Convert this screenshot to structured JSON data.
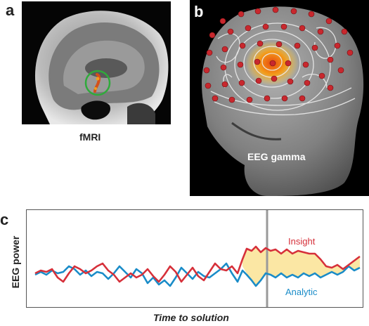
{
  "panel_a": {
    "letter": "a",
    "caption": "fMRI"
  },
  "panel_b": {
    "letter": "b",
    "caption": "EEG gamma"
  },
  "panel_c": {
    "letter": "c",
    "ylabel": "EEG power",
    "xlabel": "Time to solution",
    "series": [
      {
        "name": "Insight",
        "color": "#d6303a"
      },
      {
        "name": "Analytic",
        "color": "#1a8cc8"
      }
    ],
    "fill_color": "#fbe7a4",
    "marker_color": "#9a9a9a"
  }
}
